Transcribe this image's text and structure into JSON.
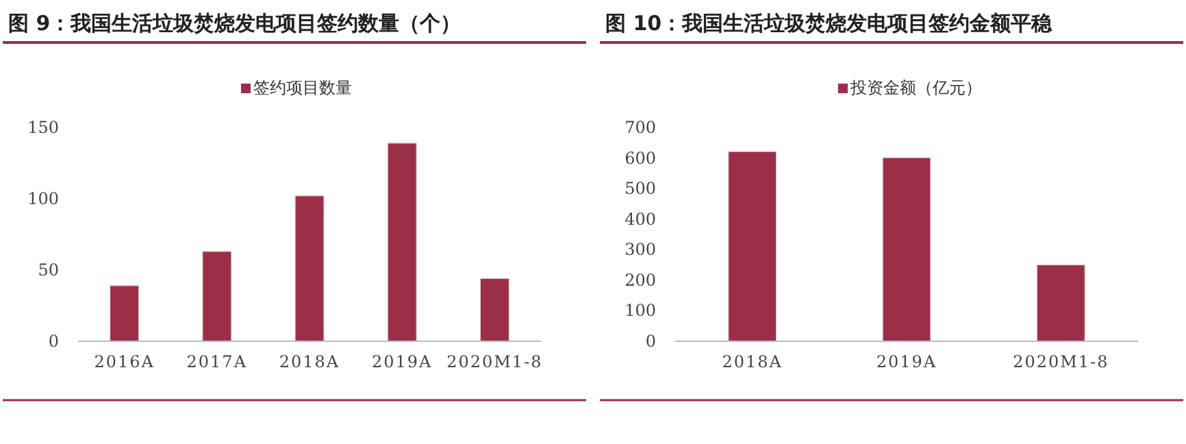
{
  "chart_data": [
    {
      "type": "bar",
      "title": "图 9：我国生活垃圾焚烧发电项目签约数量（个）",
      "categories": [
        "2016A",
        "2017A",
        "2018A",
        "2019A",
        "2020M1-8"
      ],
      "series": [
        {
          "name": "签约项目数量",
          "color": "#9b2f47",
          "values": [
            39,
            63,
            102,
            139,
            44
          ]
        }
      ],
      "ylim": [
        0,
        150
      ],
      "yticks": [
        0,
        50,
        100,
        150
      ],
      "legend": "top"
    },
    {
      "type": "bar",
      "title": "图 10：我国生活垃圾焚烧发电项目签约金额平稳",
      "categories": [
        "2018A",
        "2019A",
        "2020M1-8"
      ],
      "series": [
        {
          "name": "投资金额（亿元）",
          "color": "#9b2f47",
          "values": [
            621,
            601,
            250
          ]
        }
      ],
      "ylim": [
        0,
        700
      ],
      "yticks": [
        0,
        100,
        200,
        300,
        400,
        500,
        600,
        700
      ],
      "legend": "top"
    }
  ]
}
